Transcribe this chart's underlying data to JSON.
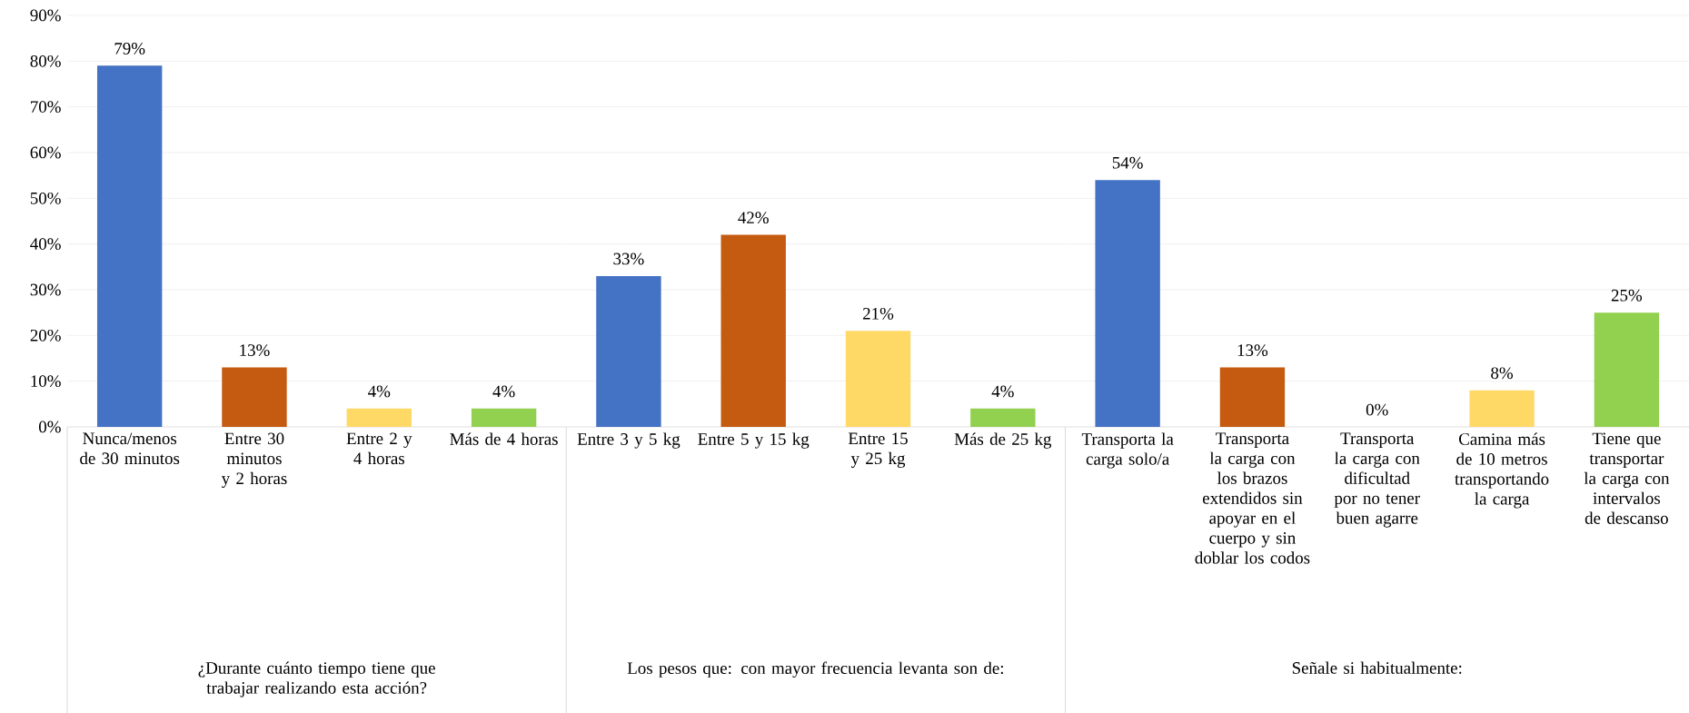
{
  "chart_data": [
    {
      "type": "bar",
      "xlabel": "¿Durante cuánto tiempo tiene que trabajar realizando esta acción?",
      "categories": [
        "Nunca/menos de 30 minutos",
        "Entre 30 minutos y 2 horas",
        "Entre 2 y 4 horas",
        "Más de 4 horas"
      ],
      "values": [
        79,
        13,
        4,
        4
      ],
      "colors": [
        "#4472c4",
        "#c55a11",
        "#ffd966",
        "#92d050"
      ],
      "value_labels": [
        "79%",
        "13%",
        "4%",
        "4%"
      ],
      "ylim": [
        0,
        90
      ],
      "yticks": [
        {
          "value": 0,
          "label": "0%"
        },
        {
          "value": 10,
          "label": "10%"
        },
        {
          "value": 20,
          "label": "20%"
        },
        {
          "value": 30,
          "label": "30%"
        },
        {
          "value": 40,
          "label": "40%"
        },
        {
          "value": 50,
          "label": "50%"
        },
        {
          "value": 60,
          "label": "60%"
        },
        {
          "value": 70,
          "label": "70%"
        },
        {
          "value": 80,
          "label": "80%"
        },
        {
          "value": 90,
          "label": "90%"
        }
      ],
      "grid": "y"
    },
    {
      "type": "bar",
      "xlabel": "Los pesos que: con mayor frecuencia levanta son de:",
      "categories": [
        "Entre 3 y 5 kg",
        "Entre 5 y 15 kg",
        "Entre 15 y 25 kg",
        "Más de 25 kg"
      ],
      "values": [
        33,
        42,
        21,
        4
      ],
      "colors": [
        "#4472c4",
        "#c55a11",
        "#ffd966",
        "#92d050"
      ],
      "value_labels": [
        "33%",
        "42%",
        "21%",
        "4%"
      ],
      "ylim": [
        0,
        90
      ],
      "yticks": [
        0,
        10,
        20,
        30,
        40,
        50,
        60,
        70,
        80,
        90
      ],
      "grid": "y",
      "tick_labels": "x"
    },
    {
      "type": "bar",
      "xlabel": "Señale si habitualmente:",
      "categories": [
        "Transporta la carga solo/a",
        "Transporta la carga con los brazos extendidos sin apoyar en el cuerpo y sin doblar los codos",
        "Transporta la carga con dificultad por no tener buen agarre",
        "Camina más de 10 metros transportando la carga",
        "Tiene que transportar la carga con intervalos de descanso"
      ],
      "values": [
        54,
        13,
        0,
        8,
        25
      ],
      "colors": [
        "#4472c4",
        "#c55a11",
        "#a5a5a5",
        "#ffd966",
        "#92d050"
      ],
      "value_labels": [
        "54%",
        "13%",
        "0%",
        "8%",
        "25%"
      ],
      "ylim": [
        0,
        90
      ],
      "yticks": [
        0,
        10,
        20,
        30,
        40,
        50,
        60,
        70,
        80,
        90
      ],
      "grid": "y",
      "tick_labels": "x"
    }
  ]
}
